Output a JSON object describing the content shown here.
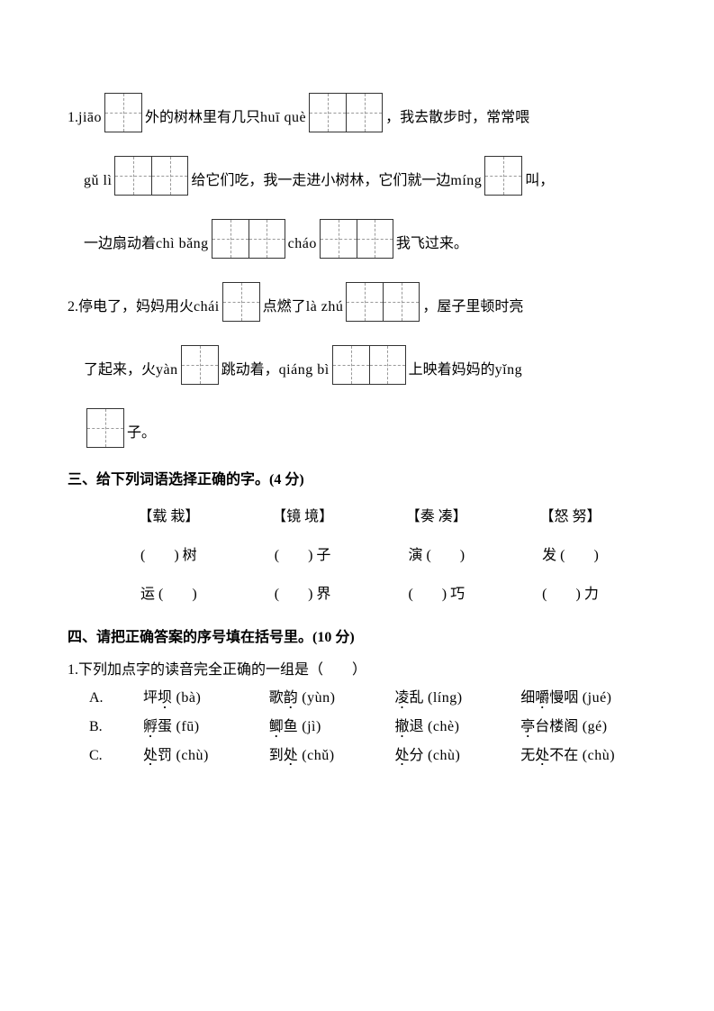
{
  "q1": {
    "l1a": "1.",
    "p1": "jiāo",
    "l1b": "外的树林里有几只",
    "p2": "huī què",
    "l1c": "，我去散步时，常常喂",
    "p3": "gǔ lì",
    "l2a": "给它们吃，我一走进小树林，它们就一边",
    "p4": "míng",
    "l2b": "叫，",
    "l3a": "一边扇动着",
    "p5": "chì bǎng",
    "p6": "cháo",
    "l3b": "我飞过来。"
  },
  "q2": {
    "l1a": "2.停电了，妈妈用火",
    "p1": "chái",
    "l1b": "点燃了",
    "p2": "là zhú",
    "l1c": "，屋子里顿时亮",
    "l2a": "了起来，火",
    "p3": "yàn",
    "l2b": "跳动着，",
    "p4": "qiáng bì",
    "l2c": "上映着妈妈的",
    "p5": "yǐng",
    "l3a": "子。"
  },
  "s3": {
    "heading": "三、给下列词语选择正确的字。(4 分)",
    "pairs": [
      "【载 栽】",
      "【镜 境】",
      "【奏 凑】",
      "【怒 努】"
    ],
    "row1": [
      "(　　) 树",
      "(　　) 子",
      "演 (　　)",
      "发 (　　)"
    ],
    "row2": [
      "运 (　　)",
      "(　　) 界",
      "(　　) 巧",
      "(　　) 力"
    ]
  },
  "s4": {
    "heading": "四、请把正确答案的序号填在括号里。(10 分)",
    "q1": "1.下列加点字的读音完全正确的一组是（　　）",
    "rows": [
      {
        "label": "A.",
        "c1a": "坪",
        "c1d": "坝",
        "c1p": " (bà)",
        "c2a": "歌",
        "c2d": "韵",
        "c2p": " (yùn)",
        "c3d": "凌",
        "c3a": "乱",
        "c3p": " (líng)",
        "c4a": "细",
        "c4d": "嚼",
        "c4b": "慢咽",
        "c4p": " (jué)"
      },
      {
        "label": "B.",
        "c1d": "孵",
        "c1a": "蛋",
        "c1p": " (fū)",
        "c2d": "鲫",
        "c2a": "鱼",
        "c2p": " (jì)",
        "c3d": "撤",
        "c3a": "退",
        "c3p": " (chè)",
        "c4d": "亭",
        "c4a": "台楼阁",
        "c4p": " (gé)"
      },
      {
        "label": "C.",
        "c1d": "处",
        "c1a": "罚",
        "c1p": " (chù)",
        "c2a": "到",
        "c2d": "处",
        "c2p": " (chǔ)",
        "c3d": "处",
        "c3a": "分",
        "c3p": " (chù)",
        "c4a": "无",
        "c4d": "处",
        "c4b": "不在",
        "c4p": " (chù)"
      }
    ]
  }
}
